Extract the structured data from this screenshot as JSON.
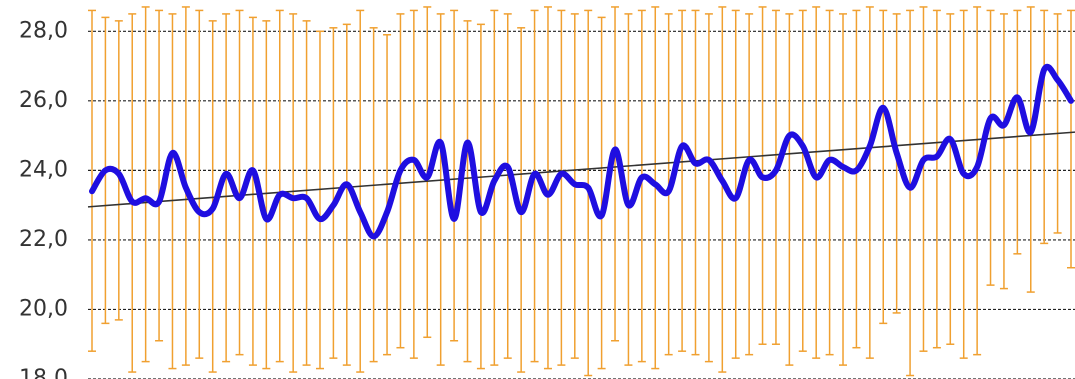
{
  "chart_data": {
    "type": "line",
    "ylim": [
      18,
      28.9
    ],
    "yticks": [
      {
        "value": 18,
        "label": "18,0"
      },
      {
        "value": 20,
        "label": "20,0"
      },
      {
        "value": 22,
        "label": "22,0"
      },
      {
        "value": 24,
        "label": "24,0"
      },
      {
        "value": 26,
        "label": "26,0"
      },
      {
        "value": 28,
        "label": "28,0"
      }
    ],
    "grid": true,
    "series": [
      {
        "color": "#1f0ee0",
        "values": [
          23.4,
          24.0,
          23.9,
          23.1,
          23.2,
          23.1,
          24.5,
          23.5,
          22.8,
          22.9,
          23.9,
          23.2,
          24.0,
          22.6,
          23.3,
          23.2,
          23.2,
          22.6,
          23.0,
          23.6,
          22.8,
          22.1,
          22.8,
          24.0,
          24.3,
          23.8,
          24.8,
          22.6,
          24.8,
          22.8,
          23.7,
          24.1,
          22.8,
          23.9,
          23.3,
          23.9,
          23.6,
          23.5,
          22.7,
          24.6,
          23.0,
          23.8,
          23.6,
          23.4,
          24.7,
          24.2,
          24.3,
          23.7,
          23.2,
          24.3,
          23.8,
          24.0,
          25.0,
          24.7,
          23.8,
          24.3,
          24.1,
          24.0,
          24.7,
          25.8,
          24.5,
          23.5,
          24.3,
          24.4,
          24.9,
          23.9,
          24.1,
          25.5,
          25.3,
          26.1,
          25.1,
          26.9,
          26.6,
          26.0
        ],
        "error_color": "#f0a030",
        "upper": [
          28.6,
          28.4,
          28.3,
          28.5,
          28.7,
          28.6,
          28.5,
          28.7,
          28.6,
          28.3,
          28.5,
          28.6,
          28.4,
          28.3,
          28.6,
          28.5,
          28.3,
          28.0,
          28.1,
          28.2,
          28.6,
          28.1,
          27.9,
          28.5,
          28.6,
          28.7,
          28.5,
          28.6,
          28.3,
          28.2,
          28.6,
          28.5,
          28.1,
          28.6,
          28.7,
          28.6,
          28.5,
          28.6,
          28.4,
          28.7,
          28.5,
          28.6,
          28.7,
          28.5,
          28.6,
          28.6,
          28.5,
          28.7,
          28.6,
          28.5,
          28.7,
          28.6,
          28.5,
          28.6,
          28.7,
          28.6,
          28.5,
          28.6,
          28.7,
          28.6,
          28.5,
          28.6,
          28.7,
          28.6,
          28.5,
          28.6,
          28.7,
          28.6,
          28.5,
          28.6,
          28.7,
          28.6,
          28.5,
          28.6
        ],
        "lower": [
          18.8,
          19.6,
          19.7,
          18.2,
          18.5,
          19.1,
          18.3,
          18.4,
          18.6,
          18.2,
          18.5,
          18.7,
          18.4,
          18.3,
          18.5,
          18.2,
          18.4,
          18.3,
          18.6,
          18.4,
          18.2,
          18.5,
          18.7,
          18.9,
          18.6,
          19.2,
          18.4,
          19.1,
          18.5,
          18.3,
          18.4,
          18.6,
          18.2,
          18.5,
          18.3,
          18.4,
          18.6,
          18.1,
          18.3,
          19.1,
          18.4,
          18.5,
          18.3,
          18.7,
          18.8,
          18.7,
          18.5,
          18.2,
          18.6,
          18.7,
          19.0,
          19.0,
          18.4,
          18.8,
          18.6,
          18.7,
          18.4,
          18.9,
          18.6,
          19.6,
          19.9,
          18.1,
          18.8,
          18.9,
          19.0,
          18.6,
          18.7,
          20.7,
          20.6,
          21.6,
          20.5,
          21.9,
          22.2,
          21.2
        ]
      }
    ],
    "trend": {
      "color": "#333333",
      "values": [
        22.95,
        25.1
      ]
    }
  }
}
